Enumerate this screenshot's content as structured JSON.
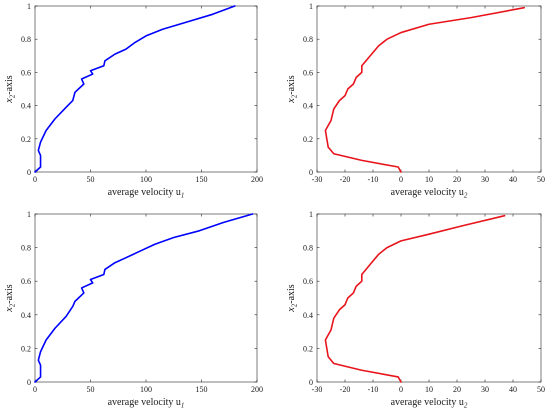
{
  "chart_data": [
    {
      "type": "line",
      "xlabel": "average velocity u",
      "xlabel_sub": "1",
      "ylabel": "x",
      "ylabel_sub": "2",
      "ylabel_suffix": "-axis",
      "xlim": [
        0,
        200
      ],
      "ylim": [
        0,
        1
      ],
      "xticks": [
        "0",
        "50",
        "100",
        "150",
        "200"
      ],
      "yticks": [
        "0",
        "0.2",
        "0.4",
        "0.6",
        "0.8",
        "1"
      ],
      "grid": false,
      "series": [
        {
          "color": "#0000ff",
          "points": [
            [
              0,
              0
            ],
            [
              5,
              0.03
            ],
            [
              5,
              0.1
            ],
            [
              3,
              0.13
            ],
            [
              5,
              0.18
            ],
            [
              10,
              0.25
            ],
            [
              18,
              0.32
            ],
            [
              28,
              0.39
            ],
            [
              34,
              0.43
            ],
            [
              36,
              0.48
            ],
            [
              44,
              0.53
            ],
            [
              42,
              0.56
            ],
            [
              52,
              0.59
            ],
            [
              50,
              0.61
            ],
            [
              62,
              0.64
            ],
            [
              63,
              0.67
            ],
            [
              72,
              0.71
            ],
            [
              82,
              0.74
            ],
            [
              90,
              0.78
            ],
            [
              100,
              0.82
            ],
            [
              115,
              0.86
            ],
            [
              135,
              0.9
            ],
            [
              160,
              0.95
            ],
            [
              180,
              1.0
            ]
          ]
        }
      ]
    },
    {
      "type": "line",
      "xlabel": "average velocity u",
      "xlabel_sub": "2",
      "ylabel": "x",
      "ylabel_sub": "2",
      "ylabel_suffix": "-axis",
      "xlim": [
        -30,
        50
      ],
      "ylim": [
        0,
        1
      ],
      "xticks": [
        "-30",
        "-20",
        "-10",
        "0",
        "10",
        "20",
        "30",
        "40",
        "50"
      ],
      "yticks": [
        "0",
        "0.2",
        "0.4",
        "0.6",
        "0.8",
        "1"
      ],
      "grid": false,
      "series": [
        {
          "color": "#e8141c",
          "points": [
            [
              0,
              0
            ],
            [
              -1,
              0.03
            ],
            [
              -14,
              0.07
            ],
            [
              -24,
              0.11
            ],
            [
              -26,
              0.15
            ],
            [
              -27,
              0.25
            ],
            [
              -25,
              0.31
            ],
            [
              -24,
              0.38
            ],
            [
              -22,
              0.43
            ],
            [
              -20,
              0.46
            ],
            [
              -19,
              0.5
            ],
            [
              -17,
              0.53
            ],
            [
              -16,
              0.57
            ],
            [
              -14,
              0.6
            ],
            [
              -14,
              0.64
            ],
            [
              -12,
              0.68
            ],
            [
              -10,
              0.72
            ],
            [
              -8,
              0.76
            ],
            [
              -5,
              0.8
            ],
            [
              0,
              0.84
            ],
            [
              10,
              0.89
            ],
            [
              25,
              0.93
            ],
            [
              44,
              0.99
            ]
          ]
        }
      ]
    },
    {
      "type": "line",
      "xlabel": "average velocity u",
      "xlabel_sub": "1",
      "ylabel": "x",
      "ylabel_sub": "2",
      "ylabel_suffix": "-axis",
      "xlim": [
        0,
        200
      ],
      "ylim": [
        0,
        1
      ],
      "xticks": [
        "0",
        "50",
        "100",
        "150",
        "200"
      ],
      "yticks": [
        "0",
        "0.2",
        "0.4",
        "0.6",
        "0.8",
        "1"
      ],
      "grid": false,
      "series": [
        {
          "color": "#0000ff",
          "points": [
            [
              0,
              0
            ],
            [
              5,
              0.03
            ],
            [
              5,
              0.1
            ],
            [
              3,
              0.13
            ],
            [
              5,
              0.18
            ],
            [
              10,
              0.25
            ],
            [
              18,
              0.32
            ],
            [
              28,
              0.39
            ],
            [
              34,
              0.45
            ],
            [
              36,
              0.48
            ],
            [
              44,
              0.53
            ],
            [
              42,
              0.56
            ],
            [
              52,
              0.59
            ],
            [
              50,
              0.61
            ],
            [
              62,
              0.64
            ],
            [
              63,
              0.67
            ],
            [
              72,
              0.71
            ],
            [
              82,
              0.74
            ],
            [
              95,
              0.78
            ],
            [
              108,
              0.82
            ],
            [
              125,
              0.86
            ],
            [
              148,
              0.9
            ],
            [
              170,
              0.95
            ],
            [
              196,
              1.0
            ]
          ]
        }
      ]
    },
    {
      "type": "line",
      "xlabel": "average velocity u",
      "xlabel_sub": "2",
      "ylabel": "x",
      "ylabel_sub": "2",
      "ylabel_suffix": "-axis",
      "xlim": [
        -30,
        50
      ],
      "ylim": [
        0,
        1
      ],
      "xticks": [
        "-30",
        "-20",
        "-10",
        "0",
        "10",
        "20",
        "30",
        "40",
        "50"
      ],
      "yticks": [
        "0",
        "0.2",
        "0.4",
        "0.6",
        "0.8",
        "1"
      ],
      "grid": false,
      "series": [
        {
          "color": "#e8141c",
          "points": [
            [
              0,
              0
            ],
            [
              -1,
              0.03
            ],
            [
              -14,
              0.07
            ],
            [
              -24,
              0.11
            ],
            [
              -26,
              0.15
            ],
            [
              -27,
              0.25
            ],
            [
              -25,
              0.31
            ],
            [
              -24,
              0.38
            ],
            [
              -22,
              0.43
            ],
            [
              -20,
              0.46
            ],
            [
              -19,
              0.5
            ],
            [
              -17,
              0.53
            ],
            [
              -16,
              0.57
            ],
            [
              -14,
              0.6
            ],
            [
              -14,
              0.64
            ],
            [
              -12,
              0.68
            ],
            [
              -10,
              0.72
            ],
            [
              -8,
              0.76
            ],
            [
              -5,
              0.8
            ],
            [
              0,
              0.84
            ],
            [
              10,
              0.88
            ],
            [
              22,
              0.93
            ],
            [
              37,
              0.99
            ]
          ]
        }
      ]
    }
  ]
}
